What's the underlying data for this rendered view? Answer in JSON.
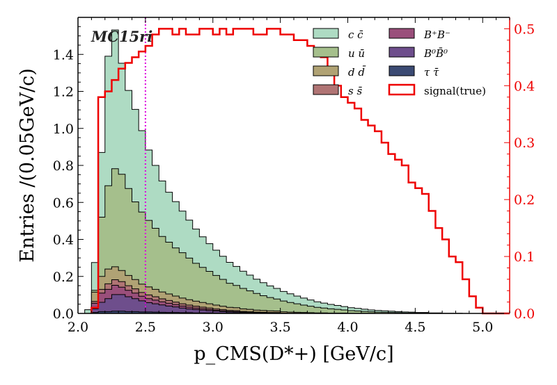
{
  "chart_data": {
    "type": "stacked-histogram",
    "tag": "MC15ri",
    "xlabel": "p_CMS(D*+) [GeV/c]",
    "ylabel": "Entries /(0.05GeV/c)",
    "xlim": [
      2.0,
      5.2
    ],
    "ylim_left": [
      0.0,
      1.6
    ],
    "ylim_right": [
      0.0,
      0.52
    ],
    "x_ticks": [
      "2.0",
      "2.5",
      "3.0",
      "3.5",
      "4.0",
      "4.5",
      "5.0"
    ],
    "y_ticks_left": [
      "0.0",
      "0.2",
      "0.4",
      "0.6",
      "0.8",
      "1.0",
      "1.2",
      "1.4"
    ],
    "y_ticks_right": [
      "0.0",
      "0.1",
      "0.2",
      "0.3",
      "0.4",
      "0.5"
    ],
    "cut_line_x": 2.5,
    "bin_width": 0.05,
    "bin_edges_start": 2.05,
    "series": [
      {
        "name": "tautau",
        "label": "τ τ̄",
        "color": "#3b4a73",
        "values": [
          0,
          0.005,
          0.01,
          0.01,
          0.012,
          0.012,
          0.01,
          0.01,
          0.008,
          0.008,
          0.007,
          0.006,
          0.005,
          0.005,
          0.004,
          0.004,
          0.003,
          0.003,
          0.003,
          0.002,
          0.002,
          0.002,
          0.002,
          0.001,
          0.001,
          0.001,
          0.001,
          0.001,
          0.001,
          0,
          0,
          0,
          0,
          0,
          0,
          0,
          0,
          0,
          0,
          0,
          0,
          0,
          0,
          0,
          0,
          0,
          0,
          0,
          0,
          0,
          0,
          0,
          0,
          0,
          0,
          0,
          0,
          0,
          0,
          0,
          0,
          0,
          0,
          0
        ]
      },
      {
        "name": "B0B0bar",
        "label": "B⁰B̄⁰",
        "color": "#6e4e8c",
        "values": [
          0,
          0.02,
          0.05,
          0.07,
          0.09,
          0.09,
          0.08,
          0.07,
          0.06,
          0.05,
          0.045,
          0.04,
          0.035,
          0.03,
          0.025,
          0.02,
          0.018,
          0.015,
          0.012,
          0.01,
          0.008,
          0.006,
          0.005,
          0.004,
          0.003,
          0.002,
          0.002,
          0.001,
          0.001,
          0.001,
          0,
          0,
          0,
          0,
          0,
          0,
          0,
          0,
          0,
          0,
          0,
          0,
          0,
          0,
          0,
          0,
          0,
          0,
          0,
          0,
          0,
          0,
          0,
          0,
          0,
          0,
          0,
          0,
          0,
          0,
          0,
          0,
          0,
          0
        ]
      },
      {
        "name": "BpBm",
        "label": "B⁺B⁻",
        "color": "#9a4f7b",
        "values": [
          0,
          0.03,
          0.05,
          0.05,
          0.05,
          0.04,
          0.035,
          0.03,
          0.025,
          0.022,
          0.02,
          0.017,
          0.015,
          0.013,
          0.011,
          0.01,
          0.008,
          0.007,
          0.006,
          0.005,
          0.004,
          0.003,
          0.003,
          0.002,
          0.002,
          0.001,
          0.001,
          0.001,
          0.001,
          0,
          0,
          0,
          0,
          0,
          0,
          0,
          0,
          0,
          0,
          0,
          0,
          0,
          0,
          0,
          0,
          0,
          0,
          0,
          0,
          0,
          0,
          0,
          0,
          0,
          0,
          0,
          0,
          0,
          0,
          0,
          0,
          0,
          0,
          0
        ]
      },
      {
        "name": "ssbar",
        "label": "s s̄",
        "color": "#b07474",
        "values": [
          0,
          0.01,
          0.02,
          0.03,
          0.03,
          0.03,
          0.025,
          0.023,
          0.02,
          0.02,
          0.018,
          0.016,
          0.015,
          0.013,
          0.012,
          0.011,
          0.01,
          0.009,
          0.008,
          0.007,
          0.006,
          0.005,
          0.005,
          0.004,
          0.003,
          0.003,
          0.002,
          0.002,
          0.002,
          0.001,
          0.001,
          0.001,
          0.001,
          0,
          0,
          0,
          0,
          0,
          0,
          0,
          0,
          0,
          0,
          0,
          0,
          0,
          0,
          0,
          0,
          0,
          0,
          0,
          0,
          0,
          0,
          0,
          0,
          0,
          0,
          0,
          0,
          0,
          0,
          0
        ]
      },
      {
        "name": "ddbar",
        "label": "d d̄",
        "color": "#b0a274",
        "values": [
          0,
          0.05,
          0.07,
          0.08,
          0.07,
          0.06,
          0.055,
          0.05,
          0.045,
          0.043,
          0.04,
          0.037,
          0.035,
          0.033,
          0.031,
          0.029,
          0.027,
          0.025,
          0.023,
          0.021,
          0.019,
          0.017,
          0.016,
          0.014,
          0.013,
          0.011,
          0.01,
          0.009,
          0.008,
          0.007,
          0.006,
          0.005,
          0.004,
          0.004,
          0.003,
          0.003,
          0.002,
          0.002,
          0.002,
          0.001,
          0.001,
          0.001,
          0.001,
          0,
          0,
          0,
          0,
          0,
          0,
          0,
          0,
          0,
          0,
          0,
          0,
          0,
          0,
          0,
          0,
          0,
          0,
          0
        ]
      },
      {
        "name": "uubar",
        "label": "u ū",
        "color": "#a5bf8c",
        "values": [
          0,
          0.01,
          0.32,
          0.45,
          0.53,
          0.52,
          0.47,
          0.42,
          0.39,
          0.36,
          0.33,
          0.3,
          0.28,
          0.26,
          0.245,
          0.225,
          0.205,
          0.19,
          0.175,
          0.16,
          0.145,
          0.13,
          0.12,
          0.11,
          0.1,
          0.09,
          0.08,
          0.072,
          0.065,
          0.058,
          0.052,
          0.046,
          0.04,
          0.035,
          0.03,
          0.026,
          0.023,
          0.02,
          0.017,
          0.014,
          0.012,
          0.01,
          0.008,
          0.007,
          0.006,
          0.005,
          0.004,
          0.003,
          0.003,
          0.002,
          0.002,
          0.001,
          0.001,
          0,
          0,
          0,
          0,
          0,
          0,
          0,
          0,
          0,
          0,
          0
        ]
      },
      {
        "name": "ccbar",
        "label": "c c̄",
        "color": "#aedbc3",
        "values": [
          0.02,
          0.15,
          0.35,
          0.7,
          0.75,
          0.6,
          0.53,
          0.5,
          0.44,
          0.38,
          0.34,
          0.3,
          0.27,
          0.25,
          0.225,
          0.205,
          0.185,
          0.165,
          0.15,
          0.137,
          0.125,
          0.113,
          0.103,
          0.093,
          0.085,
          0.077,
          0.07,
          0.063,
          0.057,
          0.052,
          0.047,
          0.042,
          0.038,
          0.034,
          0.03,
          0.027,
          0.024,
          0.021,
          0.018,
          0.016,
          0.014,
          0.012,
          0.01,
          0.009,
          0.008,
          0.007,
          0.006,
          0.005,
          0.004,
          0.003,
          0.003,
          0.002,
          0.002,
          0.001,
          0.001,
          0.001,
          0,
          0,
          0,
          0,
          0,
          0,
          0,
          0
        ]
      }
    ],
    "signal": {
      "name": "signal",
      "label": "signal(true)",
      "color": "#ee0000",
      "x_start": 2.1,
      "bin_width": 0.05,
      "values": [
        0.01,
        0.38,
        0.39,
        0.41,
        0.43,
        0.44,
        0.45,
        0.46,
        0.47,
        0.49,
        0.5,
        0.5,
        0.49,
        0.5,
        0.49,
        0.49,
        0.5,
        0.5,
        0.49,
        0.5,
        0.49,
        0.5,
        0.5,
        0.5,
        0.49,
        0.49,
        0.5,
        0.5,
        0.49,
        0.49,
        0.48,
        0.48,
        0.47,
        0.46,
        0.45,
        0.43,
        0.4,
        0.38,
        0.37,
        0.36,
        0.34,
        0.33,
        0.32,
        0.3,
        0.28,
        0.27,
        0.26,
        0.23,
        0.22,
        0.21,
        0.18,
        0.15,
        0.13,
        0.1,
        0.09,
        0.06,
        0.03,
        0.01,
        0,
        0,
        0,
        0
      ]
    },
    "legend": {
      "placement": "top-right",
      "col1": [
        "ccbar",
        "uubar",
        "ddbar",
        "ssbar"
      ],
      "col2": [
        "BpBm",
        "B0B0bar",
        "tautau",
        "signal"
      ]
    }
  }
}
